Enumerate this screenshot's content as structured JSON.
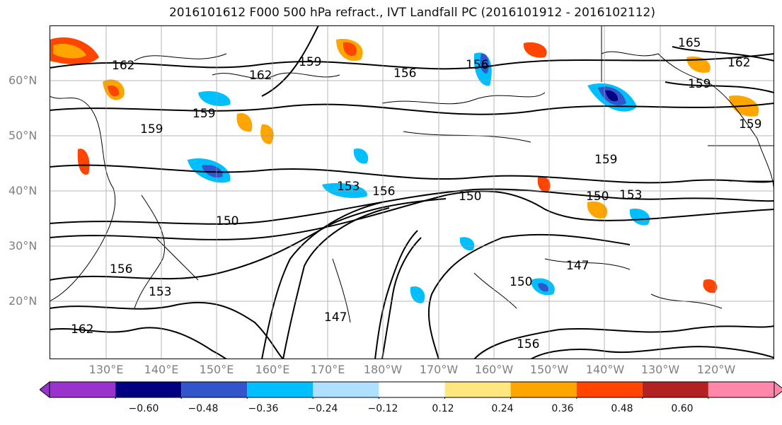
{
  "title": "2016101612 F000 500 hPa refract., IVT Landfall PC (2016101912 - 2016102112)",
  "lat_labels": [
    "60°N",
    "50°N",
    "40°N",
    "30°N",
    "20°N"
  ],
  "lon_labels": [
    "130°E",
    "140°E",
    "150°E",
    "160°E",
    "170°E",
    "180°W",
    "170°W",
    "160°W",
    "150°W",
    "140°W",
    "130°W",
    "120°W"
  ],
  "contour_labels": [
    "162",
    "159",
    "162",
    "159",
    "156",
    "156",
    "165",
    "162",
    "159",
    "159",
    "159",
    "159",
    "153",
    "156",
    "150",
    "150",
    "153",
    "150",
    "156",
    "153",
    "150",
    "147",
    "162",
    "156",
    "147"
  ],
  "colorbar": {
    "colors": [
      "#9933cc",
      "#000080",
      "#3355cc",
      "#00bfff",
      "#b0e0ff",
      "#ffffff",
      "#ffe680",
      "#ffa500",
      "#ff4500",
      "#b22222",
      "#ff88aa"
    ],
    "tick_labels": [
      "−0.60",
      "−0.48",
      "−0.36",
      "−0.24",
      "−0.12",
      "0.12",
      "0.24",
      "0.36",
      "0.48",
      "0.60"
    ]
  },
  "map_colors": {
    "land": "#000000",
    "contour": "#000000",
    "grid": "#9a9a9a"
  }
}
